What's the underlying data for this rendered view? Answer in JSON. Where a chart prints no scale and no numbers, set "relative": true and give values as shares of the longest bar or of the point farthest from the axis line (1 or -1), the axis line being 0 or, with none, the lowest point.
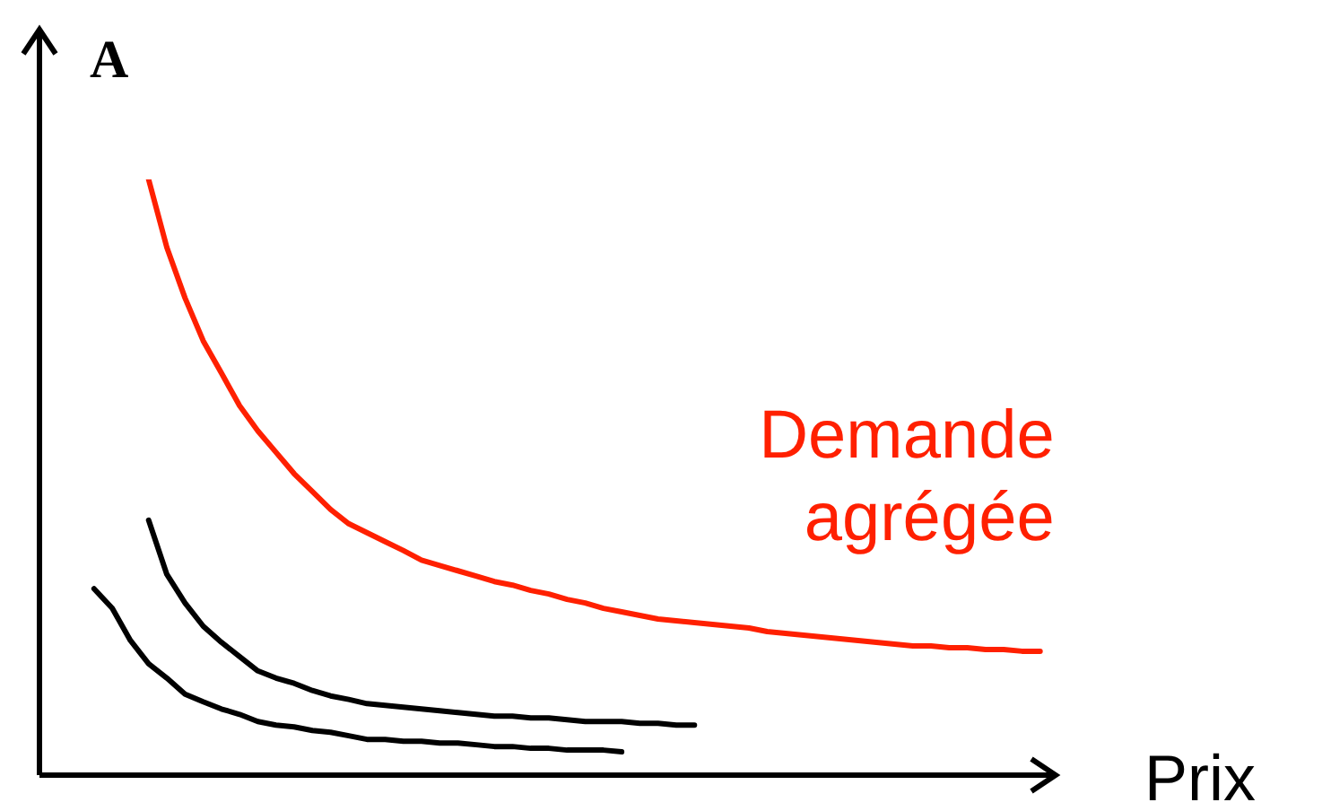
{
  "chart_data": {
    "type": "line",
    "relative": true,
    "xlabel": "Prix",
    "ylabel": "A",
    "tick_labels": false,
    "marker": "none",
    "categories": [
      null,
      null,
      null,
      null,
      null,
      null,
      null,
      null,
      null,
      null,
      null,
      null,
      null,
      null,
      null,
      null,
      null,
      null,
      null,
      null,
      null,
      null,
      null,
      null,
      null,
      null,
      null,
      null,
      null,
      null,
      null,
      null,
      null,
      null,
      null,
      null,
      null,
      null,
      null,
      null,
      null,
      null,
      null,
      null,
      null,
      null,
      null,
      null,
      null,
      null,
      null,
      null,
      null,
      null,
      null,
      null,
      null
    ],
    "series": [
      {
        "name": "Demande agrégée",
        "color": "#ff2000",
        "values": [
          null,
          null,
          null,
          null,
          null,
          null,
          1.0,
          0.886,
          0.801,
          0.729,
          0.675,
          0.62,
          0.578,
          0.542,
          0.506,
          0.476,
          0.446,
          0.422,
          0.407,
          0.392,
          0.377,
          0.361,
          0.352,
          0.343,
          0.334,
          0.325,
          0.319,
          0.31,
          0.304,
          0.295,
          0.289,
          0.28,
          0.274,
          0.268,
          0.262,
          0.259,
          0.256,
          0.253,
          0.25,
          0.247,
          0.241,
          0.238,
          0.235,
          0.232,
          0.229,
          0.226,
          0.223,
          0.22,
          0.217,
          0.217,
          0.214,
          0.214,
          0.211,
          0.211,
          0.208,
          0.208,
          null
        ]
      },
      {
        "color": "#000000",
        "values": [
          null,
          null,
          null,
          null,
          null,
          null,
          0.428,
          0.337,
          0.289,
          0.25,
          0.223,
          0.199,
          0.175,
          0.163,
          0.154,
          0.142,
          0.133,
          0.127,
          0.12,
          0.117,
          0.114,
          0.111,
          0.108,
          0.105,
          0.102,
          0.099,
          0.099,
          0.096,
          0.096,
          0.093,
          0.09,
          0.09,
          0.09,
          0.087,
          0.087,
          0.084,
          0.084,
          null,
          null,
          null,
          null,
          null,
          null,
          null,
          null,
          null,
          null,
          null,
          null,
          null,
          null,
          null,
          null,
          null,
          null,
          null,
          null
        ]
      },
      {
        "color": "#000000",
        "values": [
          null,
          null,
          null,
          0.313,
          0.28,
          0.226,
          0.187,
          0.163,
          0.136,
          0.123,
          0.111,
          0.102,
          0.09,
          0.084,
          0.081,
          0.075,
          0.072,
          0.066,
          0.06,
          0.06,
          0.057,
          0.057,
          0.054,
          0.054,
          0.051,
          0.048,
          0.048,
          0.045,
          0.045,
          0.042,
          0.042,
          0.042,
          0.039,
          null,
          null,
          null,
          null,
          null,
          null,
          null,
          null,
          null,
          null,
          null,
          null,
          null,
          null,
          null,
          null,
          null,
          null,
          null,
          null,
          null,
          null,
          null,
          null
        ]
      }
    ]
  }
}
